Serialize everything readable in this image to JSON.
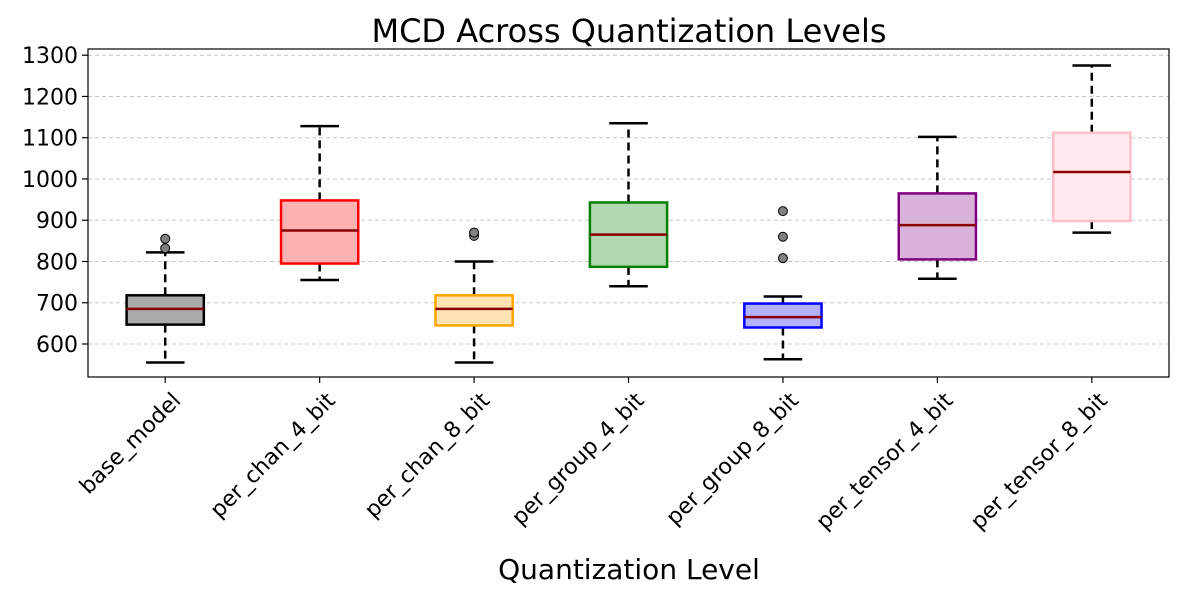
{
  "chart_data": {
    "type": "box",
    "title": "MCD Across Quantization Levels",
    "xlabel": "Quantization Level",
    "ylabel": "",
    "ylim": [
      520,
      1315
    ],
    "yticks": [
      600,
      700,
      800,
      900,
      1000,
      1100,
      1200,
      1300
    ],
    "grid": "horizontal-dashed",
    "categories": [
      "base_model",
      "per_chan_4_bit",
      "per_chan_8_bit",
      "per_group_4_bit",
      "per_group_8_bit",
      "per_tensor_4_bit",
      "per_tensor_8_bit"
    ],
    "series": [
      {
        "whisker_low": 555,
        "q1": 647,
        "median": 685,
        "q3": 718,
        "whisker_high": 822,
        "outliers": [
          832,
          855
        ],
        "edge_color": "#000000",
        "fill_color": "#aaaaaa"
      },
      {
        "whisker_low": 755,
        "q1": 795,
        "median": 875,
        "q3": 948,
        "whisker_high": 1128,
        "outliers": [],
        "edge_color": "#ff0000",
        "fill_color": "#ffb2b2"
      },
      {
        "whisker_low": 555,
        "q1": 645,
        "median": 685,
        "q3": 718,
        "whisker_high": 800,
        "outliers": [
          862,
          870
        ],
        "edge_color": "#ffa500",
        "fill_color": "#ffe3b2"
      },
      {
        "whisker_low": 740,
        "q1": 787,
        "median": 865,
        "q3": 943,
        "whisker_high": 1135,
        "outliers": [],
        "edge_color": "#008000",
        "fill_color": "#b2d8b2"
      },
      {
        "whisker_low": 563,
        "q1": 640,
        "median": 665,
        "q3": 698,
        "whisker_high": 715,
        "outliers": [
          808,
          860,
          922
        ],
        "edge_color": "#0000ff",
        "fill_color": "#b2b2ff"
      },
      {
        "whisker_low": 758,
        "q1": 805,
        "median": 888,
        "q3": 965,
        "whisker_high": 1102,
        "outliers": [],
        "edge_color": "#800080",
        "fill_color": "#d8b2d8"
      },
      {
        "whisker_low": 870,
        "q1": 898,
        "median": 1017,
        "q3": 1112,
        "whisker_high": 1275,
        "outliers": [],
        "edge_color": "#ffc0cb",
        "fill_color": "#ffeaee"
      }
    ],
    "median_color": "#8b0000",
    "whisker_color": "#000000"
  }
}
